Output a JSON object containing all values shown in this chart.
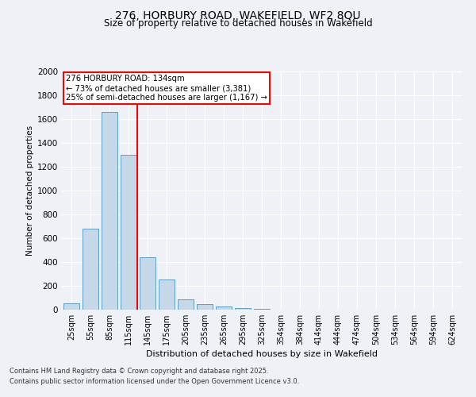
{
  "title_line1": "276, HORBURY ROAD, WAKEFIELD, WF2 8QU",
  "title_line2": "Size of property relative to detached houses in Wakefield",
  "xlabel": "Distribution of detached houses by size in Wakefield",
  "ylabel": "Number of detached properties",
  "categories": [
    "25sqm",
    "55sqm",
    "85sqm",
    "115sqm",
    "145sqm",
    "175sqm",
    "205sqm",
    "235sqm",
    "265sqm",
    "295sqm",
    "325sqm",
    "354sqm",
    "384sqm",
    "414sqm",
    "444sqm",
    "474sqm",
    "504sqm",
    "534sqm",
    "564sqm",
    "594sqm",
    "624sqm"
  ],
  "values": [
    55,
    680,
    1660,
    1300,
    440,
    255,
    85,
    45,
    30,
    15,
    5,
    2,
    0,
    0,
    0,
    2,
    0,
    0,
    0,
    0,
    0
  ],
  "bar_color": "#c5d8e8",
  "bar_edge_color": "#5b9ec9",
  "annotation_box_text": "276 HORBURY ROAD: 134sqm\n← 73% of detached houses are smaller (3,381)\n25% of semi-detached houses are larger (1,167) →",
  "red_line_x": 3.45,
  "ylim": [
    0,
    2000
  ],
  "yticks": [
    0,
    200,
    400,
    600,
    800,
    1000,
    1200,
    1400,
    1600,
    1800,
    2000
  ],
  "footer_line1": "Contains HM Land Registry data © Crown copyright and database right 2025.",
  "footer_line2": "Contains public sector information licensed under the Open Government Licence v3.0.",
  "bg_color": "#eef2f7",
  "grid_color": "#ffffff"
}
